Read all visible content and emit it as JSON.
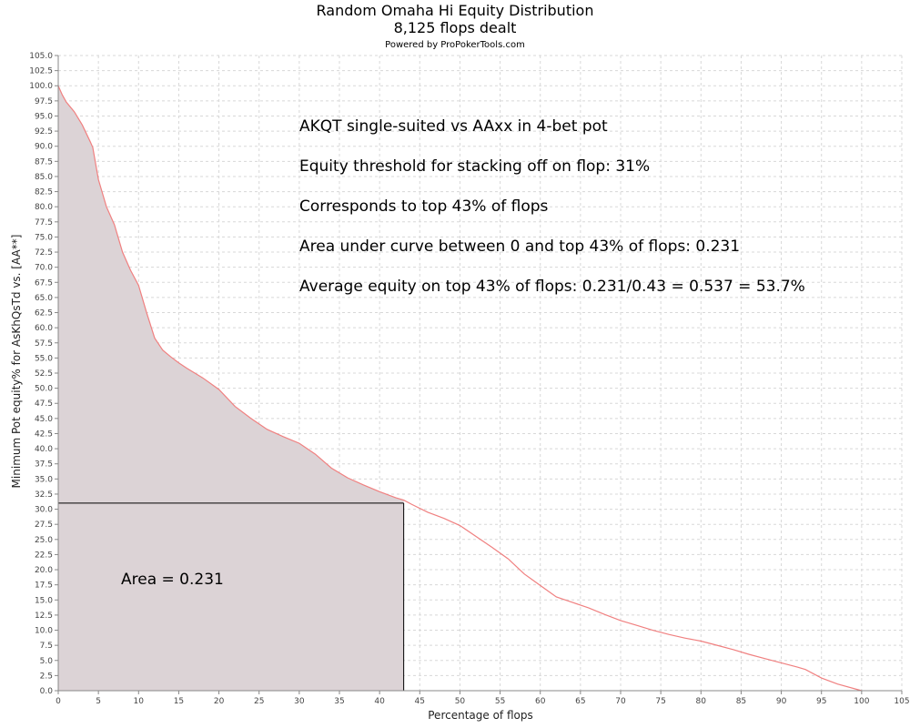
{
  "header": {
    "title": "Random Omaha Hi Equity Distribution",
    "subtitle": "8,125 flops dealt",
    "credit": "Powered by ProPokerTools.com"
  },
  "annotations": {
    "line1": "AKQT single-suited vs AAxx in 4-bet pot",
    "line2": "Equity threshold for stacking off on flop: 31%",
    "line3": "Corresponds to top 43% of flops",
    "line4": "Area under curve between 0 and top 43% of flops: 0.231",
    "line5": "Average equity on top 43% of flops: 0.231/0.43 = 0.537 = 53.7%",
    "area_label": "Area = 0.231"
  },
  "colors": {
    "line": "#f08080",
    "fill": "#dcd3d6",
    "grid": "#d8d8d8",
    "threshold_box": "#000000"
  },
  "chart_data": {
    "type": "area",
    "title": "Random Omaha Hi Equity Distribution",
    "subtitle": "8,125 flops dealt",
    "xlabel": "Percentage of flops",
    "ylabel": "Minimum Pot equity% for AsKhQsTd vs. [AA**]",
    "xlim": [
      0,
      105
    ],
    "ylim": [
      0,
      105
    ],
    "x_ticks": [
      0,
      5,
      10,
      15,
      20,
      25,
      30,
      35,
      40,
      45,
      50,
      55,
      60,
      65,
      70,
      75,
      80,
      85,
      90,
      95,
      100,
      105
    ],
    "x_tick_labels": [
      "0",
      "5",
      "10",
      "15",
      "20",
      "25",
      "30",
      "35",
      "40",
      "45",
      "50",
      "55",
      "60",
      "65",
      "70",
      "75",
      "80",
      "85",
      "90",
      "95",
      "100",
      "105"
    ],
    "y_ticks": [
      0,
      2.5,
      5,
      7.5,
      10,
      12.5,
      15,
      17.5,
      20,
      22.5,
      25,
      27.5,
      30,
      32.5,
      35,
      37.5,
      40,
      42.5,
      45,
      47.5,
      50,
      52.5,
      55,
      57.5,
      60,
      62.5,
      65,
      67.5,
      70,
      72.5,
      75,
      77.5,
      80,
      82.5,
      85,
      87.5,
      90,
      92.5,
      95,
      97.5,
      100,
      102.5,
      105
    ],
    "y_tick_labels": [
      "0.0",
      "2.5",
      "5.0",
      "7.5",
      "10.0",
      "12.5",
      "15.0",
      "17.5",
      "20.0",
      "22.5",
      "25.0",
      "27.5",
      "30.0",
      "32.5",
      "35.0",
      "37.5",
      "40.0",
      "42.5",
      "45.0",
      "47.5",
      "50.0",
      "52.5",
      "55.0",
      "57.5",
      "60.0",
      "62.5",
      "65.0",
      "67.5",
      "70.0",
      "72.5",
      "75.0",
      "77.5",
      "80.0",
      "82.5",
      "85.0",
      "87.5",
      "90.0",
      "92.5",
      "95.0",
      "97.5",
      "100.0",
      "102.5",
      "105.0"
    ],
    "grid": true,
    "fill_until_x": 43,
    "threshold": {
      "x": 43,
      "y": 31
    },
    "series": [
      {
        "x": [
          0,
          0.5,
          1,
          2,
          3,
          4,
          4.3,
          5,
          6,
          7,
          8,
          9,
          10,
          11,
          12,
          13,
          14,
          15,
          16,
          18,
          20,
          22,
          24,
          26,
          28,
          30,
          32,
          34,
          36,
          38,
          40,
          42,
          43,
          44,
          46,
          48,
          50,
          52,
          54,
          56,
          58,
          60,
          62,
          64,
          66,
          68,
          70,
          72,
          74,
          76,
          78,
          80,
          82,
          84,
          86,
          88,
          90,
          92,
          93,
          95,
          97,
          100
        ],
        "y": [
          100,
          98.5,
          97.3,
          95.7,
          93.5,
          90.7,
          89.8,
          84.5,
          80,
          77,
          72.5,
          69.5,
          67,
          62.5,
          58.3,
          56.3,
          55.2,
          54.2,
          53.3,
          51.7,
          49.8,
          47,
          45,
          43.2,
          42,
          40.9,
          39.1,
          36.8,
          35.2,
          34,
          32.9,
          31.9,
          31.5,
          30.8,
          29.5,
          28.5,
          27.3,
          25.5,
          23.7,
          21.8,
          19.3,
          17.4,
          15.5,
          14.6,
          13.7,
          12.6,
          11.6,
          10.8,
          10,
          9.3,
          8.7,
          8.2,
          7.5,
          6.8,
          6,
          5.3,
          4.6,
          3.9,
          3.5,
          2.1,
          1.1,
          0
        ]
      }
    ]
  }
}
